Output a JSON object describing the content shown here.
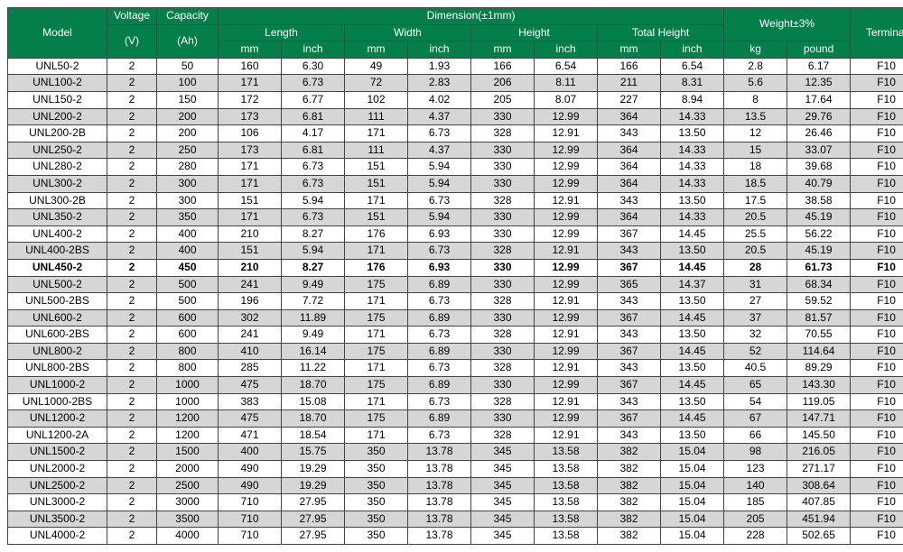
{
  "header": {
    "model": "Model",
    "voltage": "Voltage",
    "capacity": "Capacity",
    "dimension": "Dimension(±1mm)",
    "length": "Length",
    "width": "Width",
    "height": "Height",
    "total_height": "Total Height",
    "weight": "Weight±3%",
    "terminal": "Terminal",
    "v": "(V)",
    "ah": "(Ah)",
    "mm": "mm",
    "inch": "inch",
    "kg": "kg",
    "pound": "pound"
  },
  "rows": [
    {
      "shade": false,
      "bold": false,
      "cells": [
        "UNL50-2",
        "2",
        "50",
        "160",
        "6.30",
        "49",
        "1.93",
        "166",
        "6.54",
        "166",
        "6.54",
        "2.8",
        "6.17",
        "F10"
      ]
    },
    {
      "shade": true,
      "bold": false,
      "cells": [
        "UNL100-2",
        "2",
        "100",
        "171",
        "6.73",
        "72",
        "2.83",
        "206",
        "8.11",
        "211",
        "8.31",
        "5.6",
        "12.35",
        "F10"
      ]
    },
    {
      "shade": false,
      "bold": false,
      "cells": [
        "UNL150-2",
        "2",
        "150",
        "172",
        "6.77",
        "102",
        "4.02",
        "205",
        "8.07",
        "227",
        "8.94",
        "8",
        "17.64",
        "F10"
      ]
    },
    {
      "shade": true,
      "bold": false,
      "cells": [
        "UNL200-2",
        "2",
        "200",
        "173",
        "6.81",
        "111",
        "4.37",
        "330",
        "12.99",
        "364",
        "14.33",
        "13.5",
        "29.76",
        "F10"
      ]
    },
    {
      "shade": false,
      "bold": false,
      "cells": [
        "UNL200-2B",
        "2",
        "200",
        "106",
        "4.17",
        "171",
        "6.73",
        "328",
        "12.91",
        "343",
        "13.50",
        "12",
        "26.46",
        "F10"
      ]
    },
    {
      "shade": true,
      "bold": false,
      "cells": [
        "UNL250-2",
        "2",
        "250",
        "173",
        "6.81",
        "111",
        "4.37",
        "330",
        "12.99",
        "364",
        "14.33",
        "15",
        "33.07",
        "F10"
      ]
    },
    {
      "shade": false,
      "bold": false,
      "cells": [
        "UNL280-2",
        "2",
        "280",
        "171",
        "6.73",
        "151",
        "5.94",
        "330",
        "12.99",
        "364",
        "14.33",
        "18",
        "39.68",
        "F10"
      ]
    },
    {
      "shade": true,
      "bold": false,
      "cells": [
        "UNL300-2",
        "2",
        "300",
        "171",
        "6.73",
        "151",
        "5.94",
        "330",
        "12.99",
        "364",
        "14.33",
        "18.5",
        "40.79",
        "F10"
      ]
    },
    {
      "shade": false,
      "bold": false,
      "cells": [
        "UNL300-2B",
        "2",
        "300",
        "151",
        "5.94",
        "171",
        "6.73",
        "328",
        "12.91",
        "343",
        "13.50",
        "17.5",
        "38.58",
        "F10"
      ]
    },
    {
      "shade": true,
      "bold": false,
      "cells": [
        "UNL350-2",
        "2",
        "350",
        "171",
        "6.73",
        "151",
        "5.94",
        "330",
        "12.99",
        "364",
        "14.33",
        "20.5",
        "45.19",
        "F10"
      ]
    },
    {
      "shade": false,
      "bold": false,
      "cells": [
        "UNL400-2",
        "2",
        "400",
        "210",
        "8.27",
        "176",
        "6.93",
        "330",
        "12.99",
        "367",
        "14.45",
        "25.5",
        "56.22",
        "F10"
      ]
    },
    {
      "shade": true,
      "bold": false,
      "cells": [
        "UNL400-2BS",
        "2",
        "400",
        "151",
        "5.94",
        "171",
        "6.73",
        "328",
        "12.91",
        "343",
        "13.50",
        "20.5",
        "45.19",
        "F10"
      ]
    },
    {
      "shade": false,
      "bold": true,
      "cells": [
        "UNL450-2",
        "2",
        "450",
        "210",
        "8.27",
        "176",
        "6.93",
        "330",
        "12.99",
        "367",
        "14.45",
        "28",
        "61.73",
        "F10"
      ]
    },
    {
      "shade": true,
      "bold": false,
      "cells": [
        "UNL500-2",
        "2",
        "500",
        "241",
        "9.49",
        "175",
        "6.89",
        "330",
        "12.99",
        "365",
        "14.37",
        "31",
        "68.34",
        "F10"
      ]
    },
    {
      "shade": false,
      "bold": false,
      "cells": [
        "UNL500-2BS",
        "2",
        "500",
        "196",
        "7.72",
        "171",
        "6.73",
        "328",
        "12.91",
        "343",
        "13.50",
        "27",
        "59.52",
        "F10"
      ]
    },
    {
      "shade": true,
      "bold": false,
      "cells": [
        "UNL600-2",
        "2",
        "600",
        "302",
        "11.89",
        "175",
        "6.89",
        "330",
        "12.99",
        "367",
        "14.45",
        "37",
        "81.57",
        "F10"
      ]
    },
    {
      "shade": false,
      "bold": false,
      "cells": [
        "UNL600-2BS",
        "2",
        "600",
        "241",
        "9.49",
        "171",
        "6.73",
        "328",
        "12.91",
        "343",
        "13.50",
        "32",
        "70.55",
        "F10"
      ]
    },
    {
      "shade": true,
      "bold": false,
      "cells": [
        "UNL800-2",
        "2",
        "800",
        "410",
        "16.14",
        "175",
        "6.89",
        "330",
        "12.99",
        "367",
        "14.45",
        "52",
        "114.64",
        "F10"
      ]
    },
    {
      "shade": false,
      "bold": false,
      "cells": [
        "UNL800-2BS",
        "2",
        "800",
        "285",
        "11.22",
        "171",
        "6.73",
        "328",
        "12.91",
        "343",
        "13.50",
        "40.5",
        "89.29",
        "F10"
      ]
    },
    {
      "shade": true,
      "bold": false,
      "cells": [
        "UNL1000-2",
        "2",
        "1000",
        "475",
        "18.70",
        "175",
        "6.89",
        "330",
        "12.99",
        "367",
        "14.45",
        "65",
        "143.30",
        "F10"
      ]
    },
    {
      "shade": false,
      "bold": false,
      "cells": [
        "UNL1000-2BS",
        "2",
        "1000",
        "383",
        "15.08",
        "171",
        "6.73",
        "328",
        "12.91",
        "343",
        "13.50",
        "54",
        "119.05",
        "F10"
      ]
    },
    {
      "shade": true,
      "bold": false,
      "cells": [
        "UNL1200-2",
        "2",
        "1200",
        "475",
        "18.70",
        "175",
        "6.89",
        "330",
        "12.99",
        "367",
        "14.45",
        "67",
        "147.71",
        "F10"
      ]
    },
    {
      "shade": false,
      "bold": false,
      "cells": [
        "UNL1200-2A",
        "2",
        "1200",
        "471",
        "18.54",
        "171",
        "6.73",
        "328",
        "12.91",
        "343",
        "13.50",
        "66",
        "145.50",
        "F10"
      ]
    },
    {
      "shade": true,
      "bold": false,
      "cells": [
        "UNL1500-2",
        "2",
        "1500",
        "400",
        "15.75",
        "350",
        "13.78",
        "345",
        "13.58",
        "382",
        "15.04",
        "98",
        "216.05",
        "F10"
      ]
    },
    {
      "shade": false,
      "bold": false,
      "cells": [
        "UNL2000-2",
        "2",
        "2000",
        "490",
        "19.29",
        "350",
        "13.78",
        "345",
        "13.58",
        "382",
        "15.04",
        "123",
        "271.17",
        "F10"
      ]
    },
    {
      "shade": true,
      "bold": false,
      "cells": [
        "UNL2500-2",
        "2",
        "2500",
        "490",
        "19.29",
        "350",
        "13.78",
        "345",
        "13.58",
        "382",
        "15.04",
        "140",
        "308.64",
        "F10"
      ]
    },
    {
      "shade": false,
      "bold": false,
      "cells": [
        "UNL3000-2",
        "2",
        "3000",
        "710",
        "27.95",
        "350",
        "13.78",
        "345",
        "13.58",
        "382",
        "15.04",
        "185",
        "407.85",
        "F10"
      ]
    },
    {
      "shade": true,
      "bold": false,
      "cells": [
        "UNL3500-2",
        "2",
        "3500",
        "710",
        "27.95",
        "350",
        "13.78",
        "345",
        "13.58",
        "382",
        "15.04",
        "205",
        "451.94",
        "F10"
      ]
    },
    {
      "shade": false,
      "bold": false,
      "cells": [
        "UNL4000-2",
        "2",
        "4000",
        "710",
        "27.95",
        "350",
        "13.78",
        "345",
        "13.58",
        "382",
        "15.04",
        "228",
        "502.65",
        "F10"
      ]
    }
  ]
}
